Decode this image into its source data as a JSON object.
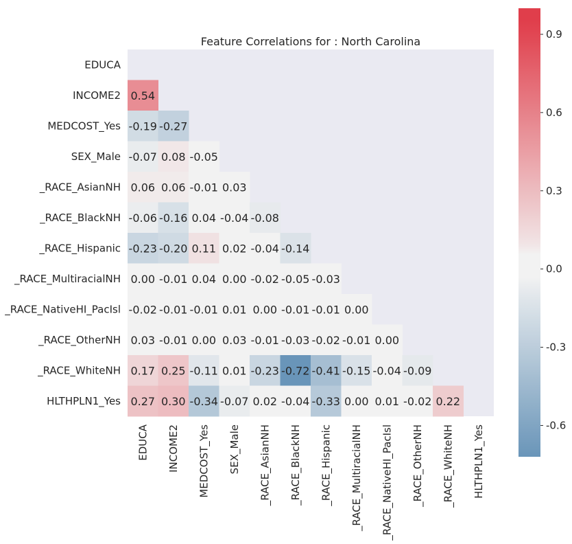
{
  "chart_data": {
    "type": "heatmap",
    "title": "Feature Correlations for : North Carolina",
    "variables": [
      "EDUCA",
      "INCOME2",
      "MEDCOST_Yes",
      "SEX_Male",
      "_RACE_AsianNH",
      "_RACE_BlackNH",
      "_RACE_Hispanic",
      "_RACE_MultiracialNH",
      "_RACE_NativeHI_PacIsl",
      "_RACE_OtherNH",
      "_RACE_WhiteNH",
      "HLTHPLN1_Yes"
    ],
    "matrix": [
      [],
      [
        0.54
      ],
      [
        -0.19,
        -0.27
      ],
      [
        -0.07,
        0.08,
        -0.05
      ],
      [
        0.06,
        0.06,
        -0.01,
        0.03
      ],
      [
        -0.06,
        -0.16,
        0.04,
        -0.04,
        -0.08
      ],
      [
        -0.23,
        -0.2,
        0.11,
        0.02,
        -0.04,
        -0.14
      ],
      [
        -0.0,
        -0.01,
        0.04,
        -0.0,
        -0.02,
        -0.05,
        -0.03
      ],
      [
        -0.02,
        -0.01,
        -0.01,
        0.01,
        -0.0,
        -0.01,
        -0.01,
        -0.0
      ],
      [
        0.03,
        -0.01,
        0.0,
        0.03,
        -0.01,
        -0.03,
        -0.02,
        -0.01,
        -0.0
      ],
      [
        0.17,
        0.25,
        -0.11,
        0.01,
        -0.23,
        -0.72,
        -0.41,
        -0.15,
        -0.04,
        -0.09
      ],
      [
        0.27,
        0.3,
        -0.34,
        -0.07,
        0.02,
        -0.04,
        -0.33,
        -0.0,
        0.01,
        -0.02,
        0.22
      ]
    ],
    "mask": "upper-triangle-and-diagonal",
    "vmin": -0.72,
    "vmax": 1.0,
    "colorbar_ticks": [
      0.9,
      0.6,
      0.3,
      0.0,
      -0.3,
      -0.6
    ],
    "colormap": {
      "negative": "#3d77a6",
      "center": "#f2f2f2",
      "positive": "#e03e4b"
    },
    "background": "#eaeaf2"
  }
}
